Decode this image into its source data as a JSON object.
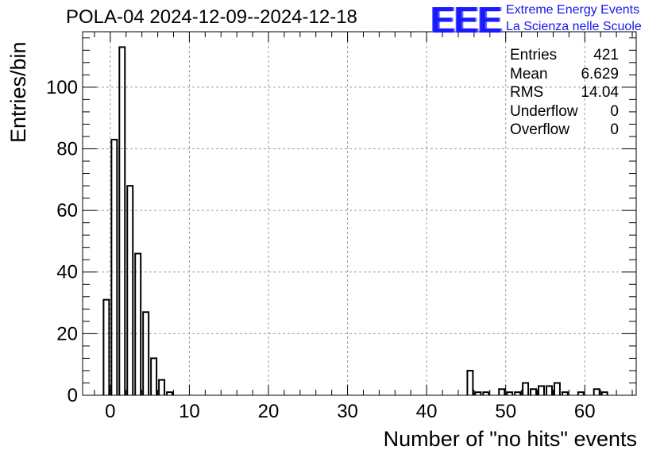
{
  "title": "POLA-04 2024-12-09--2024-12-18",
  "logo": {
    "text": "EEE",
    "line1": "Extreme Energy Events",
    "line2": "La Scienza nelle Scuole",
    "color": "#1a1aff"
  },
  "stats": [
    {
      "name": "Entries",
      "value": "421"
    },
    {
      "name": "Mean",
      "value": "6.629"
    },
    {
      "name": "RMS",
      "value": "14.04"
    },
    {
      "name": "Underflow",
      "value": "0"
    },
    {
      "name": "Overflow",
      "value": "0"
    }
  ],
  "chart_data": {
    "type": "histogram",
    "title": "POLA-04 2024-12-09--2024-12-18",
    "xlabel": "Number of \"no hits\" events",
    "ylabel": "Entries/bin",
    "xlim": [
      -3.5,
      66.5
    ],
    "ylim": [
      0,
      118
    ],
    "bin_width": 0.7,
    "x_ticks": [
      0,
      10,
      20,
      30,
      40,
      50,
      60
    ],
    "y_ticks": [
      0,
      20,
      40,
      60,
      80,
      100
    ],
    "grid": true,
    "bins": [
      {
        "x": -0.5,
        "count": 31
      },
      {
        "x": 0.5,
        "count": 83
      },
      {
        "x": 1.5,
        "count": 113
      },
      {
        "x": 2.5,
        "count": 68
      },
      {
        "x": 3.5,
        "count": 46
      },
      {
        "x": 4.5,
        "count": 27
      },
      {
        "x": 5.5,
        "count": 12
      },
      {
        "x": 6.5,
        "count": 5
      },
      {
        "x": 7.5,
        "count": 1
      },
      {
        "x": 45.5,
        "count": 8
      },
      {
        "x": 46.5,
        "count": 1
      },
      {
        "x": 47.5,
        "count": 1
      },
      {
        "x": 49.5,
        "count": 2
      },
      {
        "x": 50.5,
        "count": 1
      },
      {
        "x": 51.5,
        "count": 1
      },
      {
        "x": 52.5,
        "count": 4
      },
      {
        "x": 53.5,
        "count": 2
      },
      {
        "x": 54.5,
        "count": 3
      },
      {
        "x": 55.5,
        "count": 3
      },
      {
        "x": 56.5,
        "count": 4
      },
      {
        "x": 57.5,
        "count": 1
      },
      {
        "x": 59.5,
        "count": 1
      },
      {
        "x": 61.5,
        "count": 2
      },
      {
        "x": 62.5,
        "count": 1
      }
    ]
  }
}
